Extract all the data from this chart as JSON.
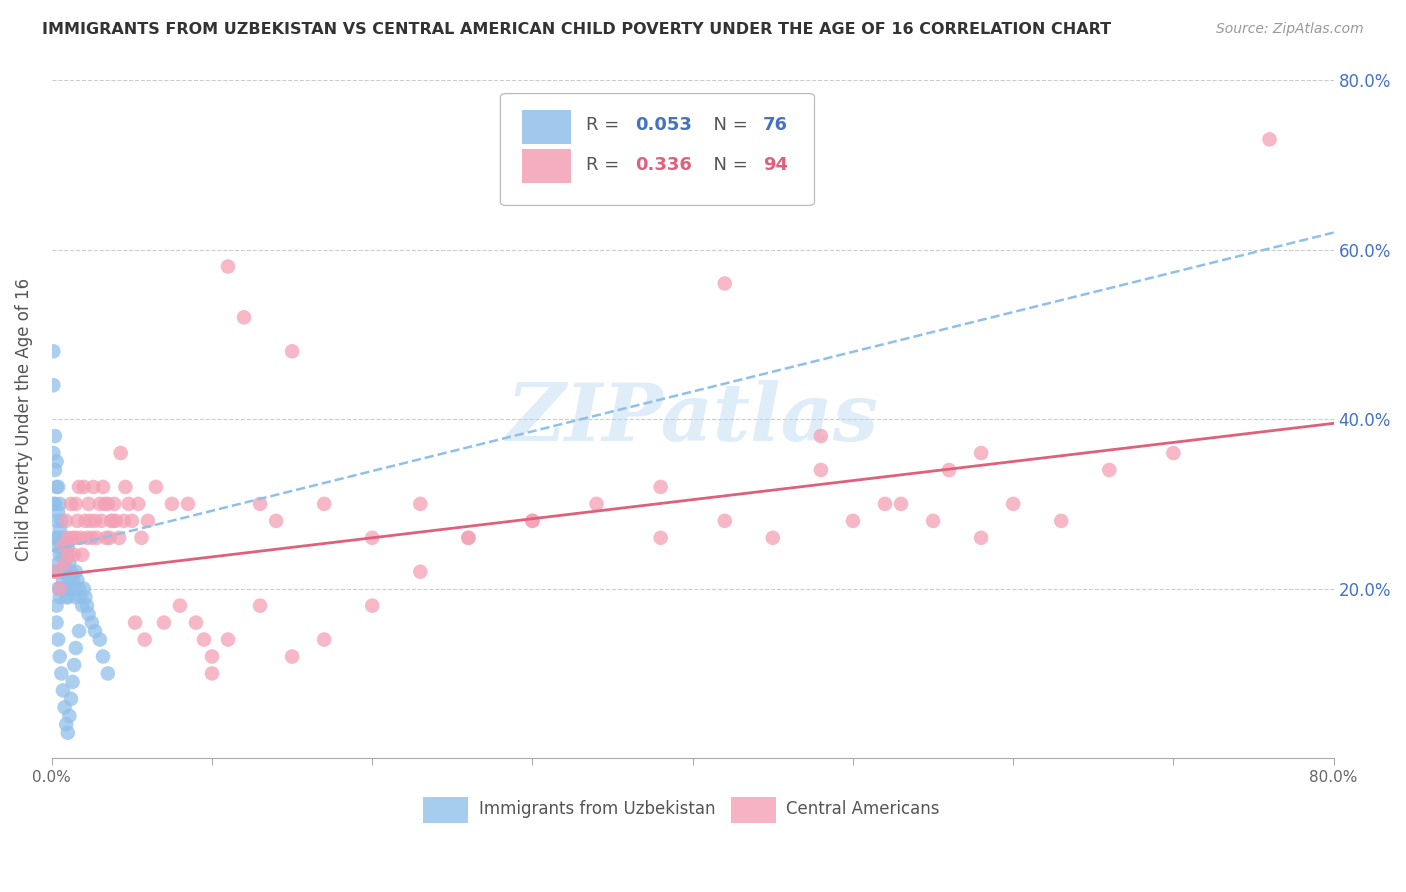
{
  "title": "IMMIGRANTS FROM UZBEKISTAN VS CENTRAL AMERICAN CHILD POVERTY UNDER THE AGE OF 16 CORRELATION CHART",
  "source": "Source: ZipAtlas.com",
  "ylabel": "Child Poverty Under the Age of 16",
  "xlim": [
    0.0,
    0.8
  ],
  "ylim": [
    0.0,
    0.8
  ],
  "blue_color": "#90c0ea",
  "pink_color": "#f4a0b5",
  "trend_blue_color": "#90c0ea",
  "trend_pink_color": "#e0607a",
  "watermark": "ZIPatlas",
  "blue_scatter_x": [
    0.001,
    0.001,
    0.001,
    0.001,
    0.002,
    0.002,
    0.002,
    0.002,
    0.002,
    0.003,
    0.003,
    0.003,
    0.003,
    0.003,
    0.003,
    0.004,
    0.004,
    0.004,
    0.004,
    0.004,
    0.005,
    0.005,
    0.005,
    0.005,
    0.005,
    0.006,
    0.006,
    0.006,
    0.006,
    0.007,
    0.007,
    0.007,
    0.008,
    0.008,
    0.008,
    0.009,
    0.009,
    0.009,
    0.01,
    0.01,
    0.01,
    0.011,
    0.011,
    0.012,
    0.012,
    0.013,
    0.014,
    0.015,
    0.015,
    0.016,
    0.017,
    0.018,
    0.019,
    0.02,
    0.021,
    0.022,
    0.023,
    0.025,
    0.027,
    0.03,
    0.032,
    0.035,
    0.003,
    0.004,
    0.005,
    0.006,
    0.007,
    0.008,
    0.009,
    0.01,
    0.011,
    0.012,
    0.013,
    0.014,
    0.015,
    0.017
  ],
  "blue_scatter_y": [
    0.48,
    0.44,
    0.36,
    0.3,
    0.38,
    0.34,
    0.3,
    0.26,
    0.22,
    0.35,
    0.32,
    0.28,
    0.25,
    0.22,
    0.18,
    0.32,
    0.29,
    0.26,
    0.23,
    0.2,
    0.3,
    0.27,
    0.24,
    0.22,
    0.19,
    0.28,
    0.25,
    0.22,
    0.2,
    0.26,
    0.24,
    0.21,
    0.25,
    0.23,
    0.2,
    0.24,
    0.22,
    0.19,
    0.25,
    0.22,
    0.19,
    0.23,
    0.21,
    0.22,
    0.2,
    0.21,
    0.2,
    0.22,
    0.19,
    0.21,
    0.2,
    0.19,
    0.18,
    0.2,
    0.19,
    0.18,
    0.17,
    0.16,
    0.15,
    0.14,
    0.12,
    0.1,
    0.16,
    0.14,
    0.12,
    0.1,
    0.08,
    0.06,
    0.04,
    0.03,
    0.05,
    0.07,
    0.09,
    0.11,
    0.13,
    0.15
  ],
  "pink_scatter_x": [
    0.003,
    0.005,
    0.007,
    0.008,
    0.009,
    0.01,
    0.011,
    0.012,
    0.013,
    0.014,
    0.015,
    0.015,
    0.016,
    0.017,
    0.018,
    0.019,
    0.02,
    0.021,
    0.022,
    0.023,
    0.024,
    0.025,
    0.026,
    0.027,
    0.028,
    0.03,
    0.031,
    0.032,
    0.033,
    0.034,
    0.035,
    0.036,
    0.037,
    0.038,
    0.039,
    0.04,
    0.042,
    0.043,
    0.045,
    0.046,
    0.048,
    0.05,
    0.052,
    0.054,
    0.056,
    0.058,
    0.06,
    0.065,
    0.07,
    0.075,
    0.08,
    0.085,
    0.09,
    0.095,
    0.1,
    0.11,
    0.12,
    0.13,
    0.14,
    0.15,
    0.17,
    0.2,
    0.23,
    0.26,
    0.3,
    0.34,
    0.38,
    0.42,
    0.45,
    0.48,
    0.5,
    0.52,
    0.55,
    0.58,
    0.6,
    0.63,
    0.66,
    0.7,
    0.38,
    0.42,
    0.48,
    0.53,
    0.56,
    0.58,
    0.1,
    0.11,
    0.13,
    0.15,
    0.17,
    0.2,
    0.23,
    0.26,
    0.3,
    0.76
  ],
  "pink_scatter_y": [
    0.22,
    0.2,
    0.25,
    0.23,
    0.28,
    0.26,
    0.24,
    0.3,
    0.26,
    0.24,
    0.3,
    0.26,
    0.28,
    0.32,
    0.26,
    0.24,
    0.32,
    0.28,
    0.26,
    0.3,
    0.28,
    0.26,
    0.32,
    0.28,
    0.26,
    0.3,
    0.28,
    0.32,
    0.3,
    0.26,
    0.3,
    0.26,
    0.28,
    0.28,
    0.3,
    0.28,
    0.26,
    0.36,
    0.28,
    0.32,
    0.3,
    0.28,
    0.16,
    0.3,
    0.26,
    0.14,
    0.28,
    0.32,
    0.16,
    0.3,
    0.18,
    0.3,
    0.16,
    0.14,
    0.1,
    0.58,
    0.52,
    0.3,
    0.28,
    0.48,
    0.3,
    0.26,
    0.3,
    0.26,
    0.28,
    0.3,
    0.26,
    0.56,
    0.26,
    0.34,
    0.28,
    0.3,
    0.28,
    0.26,
    0.3,
    0.28,
    0.34,
    0.36,
    0.32,
    0.28,
    0.38,
    0.3,
    0.34,
    0.36,
    0.12,
    0.14,
    0.18,
    0.12,
    0.14,
    0.18,
    0.22,
    0.26,
    0.28,
    0.73
  ],
  "blue_trend_start_y": 0.245,
  "blue_trend_end_y": 0.62,
  "pink_trend_start_y": 0.215,
  "pink_trend_end_y": 0.395
}
